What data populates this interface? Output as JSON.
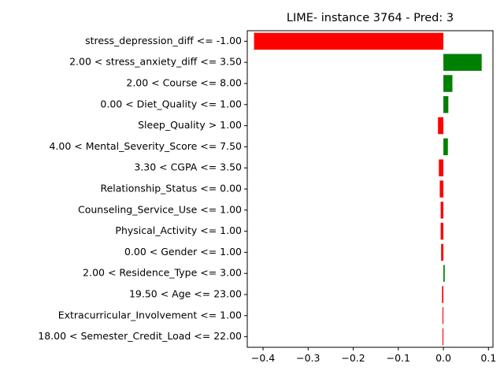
{
  "chart_data": {
    "type": "bar",
    "orientation": "horizontal",
    "title": "LIME- instance 3764 - Pred: 3",
    "xlabel": "",
    "ylabel": "",
    "xlim": [
      -0.435,
      0.11
    ],
    "xticks": [
      -0.4,
      -0.3,
      -0.2,
      -0.1,
      0.0,
      0.1
    ],
    "xtick_labels": [
      "−0.4",
      "−0.3",
      "−0.2",
      "−0.1",
      "0.0",
      "0.1"
    ],
    "grid": false,
    "colors": {
      "positive": "#008000",
      "negative": "#ff0000"
    },
    "categories": [
      "stress_depression_diff <= -1.00",
      "2.00 < stress_anxiety_diff <= 3.50",
      "2.00 < Course <= 8.00",
      "0.00 < Diet_Quality <= 1.00",
      "Sleep_Quality > 1.00",
      "4.00 < Mental_Severity_Score <= 7.50",
      "3.30 < CGPA <= 3.50",
      "Relationship_Status <= 0.00",
      "Counseling_Service_Use <= 1.00",
      "Physical_Activity <= 1.00",
      "0.00 < Gender <= 1.00",
      "2.00 < Residence_Type <= 3.00",
      "19.50 < Age <= 23.00",
      "Extracurricular_Involvement <= 1.00",
      "18.00 < Semester_Credit_Load <= 22.00"
    ],
    "values": [
      -0.42,
      0.085,
      0.02,
      0.011,
      -0.012,
      0.01,
      -0.01,
      -0.008,
      -0.006,
      -0.006,
      -0.005,
      0.003,
      -0.003,
      -0.002,
      -0.002
    ]
  }
}
